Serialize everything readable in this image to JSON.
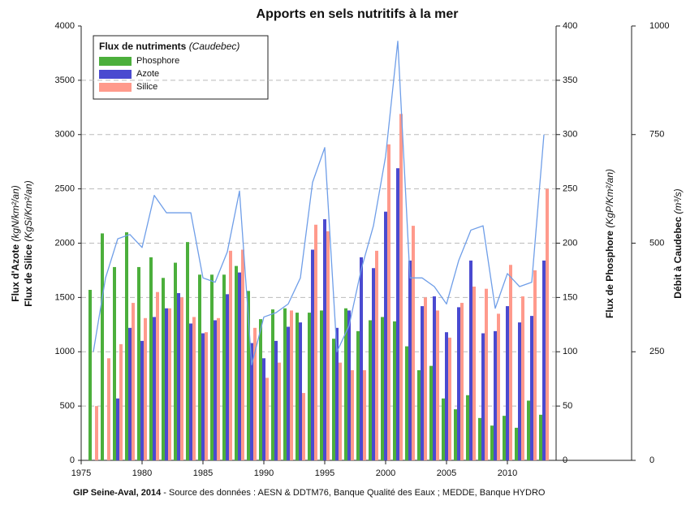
{
  "chart_data": {
    "type": "bar",
    "title": "Apports en sels nutritifs à la mer",
    "y_label_lines": [
      {
        "bold": "Flux d'Azote",
        "italic": "(kgN/km²/an)"
      },
      {
        "bold": "Flux de Silice",
        "italic": "(KgSi/Km²/an)"
      }
    ],
    "y2_label": {
      "bold": "Flux de Phosphore",
      "italic": "(KgP/Km²/an)"
    },
    "y3_label": {
      "bold": "Débit à Caudebec",
      "italic": "(m³/s)"
    },
    "legend_title": {
      "bold": "Flux de nutriments",
      "italic": "(Caudebec)"
    },
    "legend": "upper left",
    "footer": {
      "bold": "GIP Seine-Aval, 2014",
      "text": " - Source des données : AESN & DDTM76, Banque Qualité des Eaux ; MEDDE, Banque HYDRO"
    },
    "x": [
      1976,
      1977,
      1978,
      1979,
      1980,
      1981,
      1982,
      1983,
      1984,
      1985,
      1986,
      1987,
      1988,
      1989,
      1990,
      1991,
      1992,
      1993,
      1994,
      1995,
      1996,
      1997,
      1998,
      1999,
      2000,
      2001,
      2002,
      2003,
      2004,
      2005,
      2006,
      2007,
      2008,
      2009,
      2010,
      2011,
      2012,
      2013
    ],
    "xlim": [
      1975,
      2014
    ],
    "xticks": [
      1975,
      1980,
      1985,
      1990,
      1995,
      2000,
      2005,
      2010
    ],
    "ylim": [
      0,
      4000
    ],
    "yticks": [
      0,
      500,
      1000,
      1500,
      2000,
      2500,
      3000,
      3500,
      4000
    ],
    "y2lim": [
      0,
      400
    ],
    "y2ticks": [
      0,
      50,
      100,
      150,
      200,
      250,
      300,
      350,
      400
    ],
    "y3lim": [
      0,
      1000
    ],
    "y3ticks": [
      0,
      250,
      500,
      750,
      1000
    ],
    "grid": true,
    "series": [
      {
        "name": "Phosphore",
        "color": "#4caf3c",
        "axis": "y2",
        "offset": 0,
        "values": [
          157,
          209,
          178,
          210,
          178,
          187,
          168,
          182,
          201,
          171,
          171,
          171,
          179,
          156,
          130,
          139,
          140,
          136,
          136,
          138,
          112,
          140,
          119,
          129,
          132,
          128,
          105,
          83,
          87,
          57,
          47,
          60,
          39,
          32,
          41,
          30,
          55,
          42
        ]
      },
      {
        "name": "Azote",
        "color": "#4a4ad0",
        "axis": "y",
        "offset": 1,
        "values": [
          null,
          null,
          570,
          1220,
          1100,
          1320,
          1400,
          1540,
          1260,
          1170,
          1290,
          1530,
          1730,
          1080,
          940,
          1100,
          1230,
          1270,
          1940,
          2220,
          1220,
          1380,
          1870,
          1770,
          2290,
          2690,
          1840,
          1420,
          1510,
          1180,
          1410,
          1840,
          1170,
          1190,
          1420,
          1270,
          1330,
          1840
        ]
      },
      {
        "name": "Silice",
        "color": "#ff9a8c",
        "axis": "y",
        "offset": 2,
        "values": [
          500,
          940,
          1070,
          1450,
          1310,
          1550,
          1400,
          1500,
          1320,
          1180,
          1310,
          1930,
          1940,
          1220,
          760,
          900,
          1380,
          620,
          2170,
          2110,
          900,
          830,
          830,
          1930,
          2910,
          3190,
          2160,
          1500,
          1380,
          1130,
          1450,
          1600,
          1580,
          1350,
          1800,
          1510,
          1750,
          2500
        ]
      },
      {
        "type": "line",
        "color": "#6f9ee8",
        "axis": "y3",
        "values": [
          250,
          420,
          510,
          520,
          490,
          610,
          570,
          570,
          570,
          420,
          410,
          480,
          620,
          220,
          330,
          340,
          360,
          420,
          640,
          720,
          250,
          310,
          440,
          540,
          700,
          965,
          420,
          420,
          400,
          360,
          460,
          530,
          540,
          350,
          430,
          400,
          410,
          750
        ]
      }
    ]
  }
}
